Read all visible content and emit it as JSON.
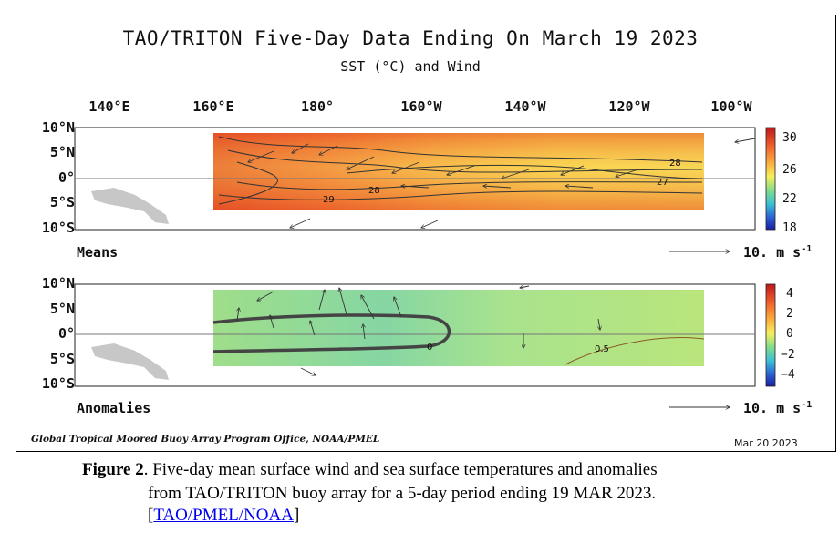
{
  "chart_data": [
    {
      "type": "heatmap",
      "title": "TAO/TRITON Five-Day Data Ending On March 19 2023",
      "subtitle": "SST (°C) and Wind",
      "panel_label": "Means",
      "x_ticks": [
        "140°E",
        "160°E",
        "180°",
        "160°W",
        "140°W",
        "120°W",
        "100°W"
      ],
      "y_ticks": [
        "10°N",
        "5°N",
        "0°",
        "5°S",
        "10°S"
      ],
      "colorbar_ticks": [
        "30",
        "26",
        "22",
        "18"
      ],
      "colorbar_range": [
        18,
        31
      ],
      "contour_labels": [
        "28",
        "28",
        "27",
        "29"
      ],
      "wind_scale_label": "10. m s",
      "wind_scale_exp": "-1",
      "colors": [
        "#1a1a8c",
        "#3a7bd5",
        "#4fc3b8",
        "#a6d96a",
        "#fee08b",
        "#fdae61",
        "#f46d43",
        "#d73027"
      ]
    },
    {
      "type": "heatmap",
      "panel_label": "Anomalies",
      "x_ticks": [
        "140°E",
        "160°E",
        "180°",
        "160°W",
        "140°W",
        "120°W",
        "100°W"
      ],
      "y_ticks": [
        "10°N",
        "5°N",
        "0°",
        "5°S",
        "10°S"
      ],
      "colorbar_ticks": [
        "4",
        "2",
        "0",
        "−2",
        "−4"
      ],
      "colorbar_range": [
        -5,
        5
      ],
      "contour_labels": [
        "0",
        "0.5"
      ],
      "wind_scale_label": "10. m s",
      "wind_scale_exp": "-1"
    }
  ],
  "footer": {
    "left": "Global Tropical Moored Buoy Array Program Office, NOAA/PMEL",
    "right": "Mar 20 2023"
  },
  "caption": {
    "figure_label": "Figure 2",
    "text_line1": ". Five-day mean surface wind and sea surface temperatures and anomalies",
    "text_line2": "from TAO/TRITON buoy array for a 5-day period ending 19 MAR 2023.",
    "bracket_open": "[",
    "link_text": "TAO/PMEL/NOAA",
    "bracket_close": "]"
  }
}
